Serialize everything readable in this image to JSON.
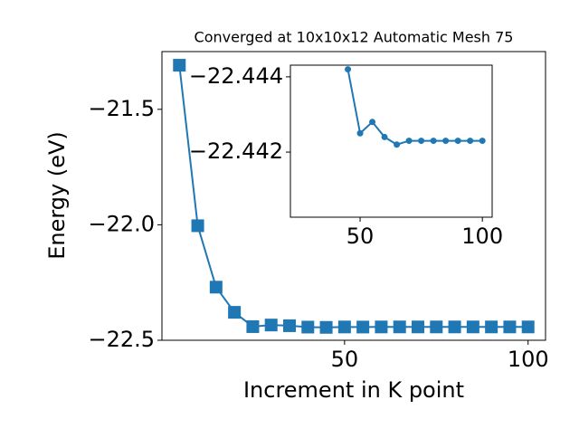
{
  "chart_data": [
    {
      "type": "line",
      "title": "Converged at 10x10x12 Automatic Mesh 75",
      "xlabel": "Increment in K point",
      "ylabel": "Energy (eV)",
      "marker": "square",
      "series": [
        {
          "color": "#1f77b4",
          "x": [
            5,
            10,
            15,
            20,
            25,
            30,
            35,
            40,
            45,
            50,
            55,
            60,
            65,
            70,
            75,
            80,
            85,
            90,
            95,
            100
          ],
          "values": [
            -21.309,
            -22.004,
            -22.27,
            -22.379,
            -22.441,
            -22.434,
            -22.437,
            -22.443,
            -22.4442,
            -22.4425,
            -22.4428,
            -22.4424,
            -22.4422,
            -22.4423,
            -22.4423,
            -22.4423,
            -22.4423,
            -22.4423,
            -22.4423,
            -22.4423
          ]
        }
      ],
      "xlim": [
        0.25,
        104.75
      ],
      "ylim": [
        -22.5,
        -21.25
      ],
      "xticks": [
        50,
        100
      ],
      "yticks": [
        {
          "value": -22.5,
          "label": "−22.5"
        },
        {
          "value": -22.0,
          "label": "−22.0"
        },
        {
          "value": -21.5,
          "label": "−21.5"
        }
      ]
    },
    {
      "type": "line",
      "marker": "circle",
      "series": [
        {
          "color": "#1f77b4",
          "x": [
            45,
            50,
            55,
            60,
            65,
            70,
            75,
            80,
            85,
            90,
            95,
            100
          ],
          "values": [
            -22.4442,
            -22.4425,
            -22.4428,
            -22.4424,
            -22.4422,
            -22.4423,
            -22.4423,
            -22.4423,
            -22.4423,
            -22.4423,
            -22.4423,
            -22.4423
          ]
        }
      ],
      "xlim": [
        21.5,
        104
      ],
      "ylim": [
        -22.44027,
        -22.44431
      ],
      "xticks": [
        50,
        100
      ],
      "yticks": [
        {
          "value": -22.444,
          "label": "−22.444"
        },
        {
          "value": -22.442,
          "label": "−22.442"
        }
      ]
    }
  ]
}
